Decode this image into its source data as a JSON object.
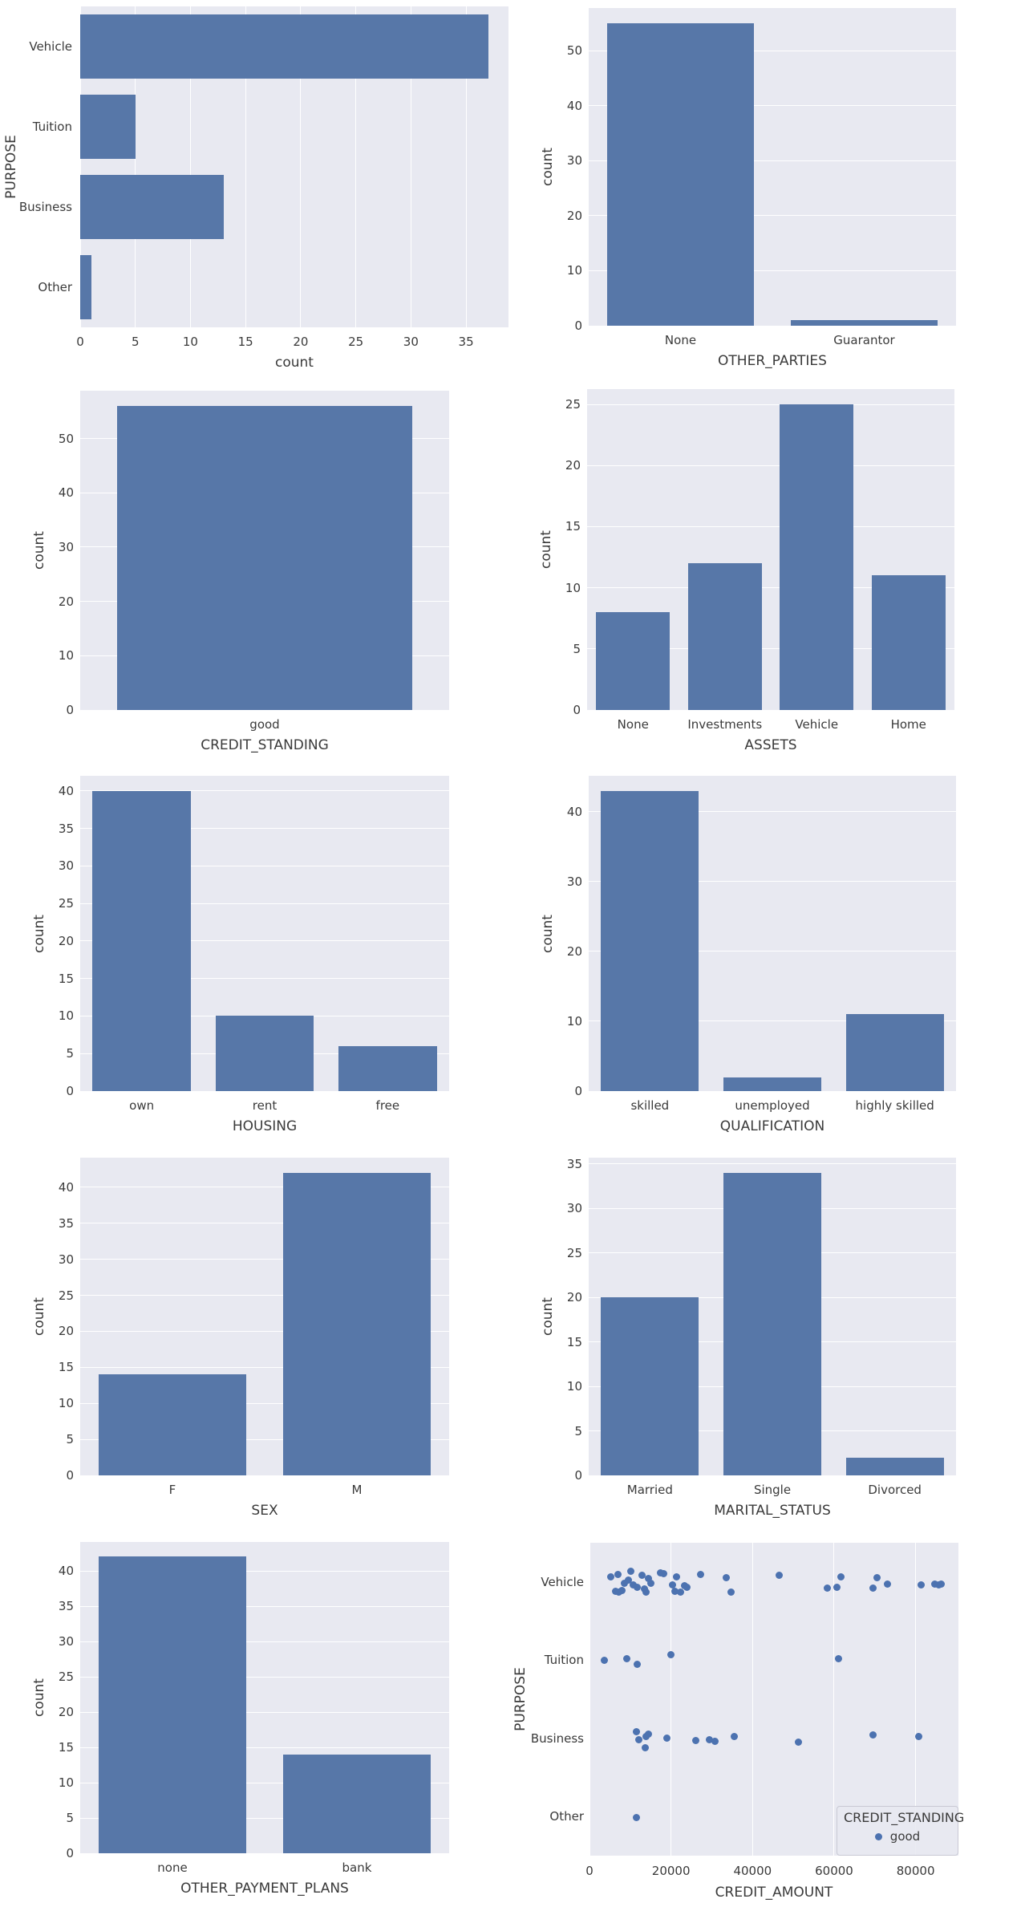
{
  "figure": {
    "background": "#ffffff",
    "plot_background": "#e8e9f1",
    "grid_color": "#ffffff",
    "bar_color": "#5777a8",
    "dot_color": "#4c72b0",
    "text_color": "#3a3a3a"
  },
  "chart_data": [
    {
      "type": "bar",
      "orientation": "horizontal",
      "title": "",
      "xlabel": "count",
      "ylabel": "PURPOSE",
      "categories": [
        "Vehicle",
        "Tuition",
        "Business",
        "Other"
      ],
      "values": [
        37,
        5,
        13,
        1
      ],
      "xticks": [
        0,
        5,
        10,
        15,
        20,
        25,
        30,
        35
      ],
      "xlim": [
        0,
        38.85
      ],
      "grid": true,
      "legend_position": "none"
    },
    {
      "type": "bar",
      "orientation": "vertical",
      "title": "",
      "xlabel": "OTHER_PARTIES",
      "ylabel": "count",
      "categories": [
        "None",
        "Guarantor"
      ],
      "values": [
        55,
        1
      ],
      "yticks": [
        0,
        10,
        20,
        30,
        40,
        50
      ],
      "ylim": [
        0,
        57.75
      ],
      "grid": true,
      "legend_position": "none"
    },
    {
      "type": "bar",
      "orientation": "vertical",
      "title": "",
      "xlabel": "CREDIT_STANDING",
      "ylabel": "count",
      "categories": [
        "good"
      ],
      "values": [
        56
      ],
      "yticks": [
        0,
        10,
        20,
        30,
        40,
        50
      ],
      "ylim": [
        0,
        58.8
      ],
      "grid": true,
      "legend_position": "none"
    },
    {
      "type": "bar",
      "orientation": "vertical",
      "title": "",
      "xlabel": "ASSETS",
      "ylabel": "count",
      "categories": [
        "None",
        "Investments",
        "Vehicle",
        "Home"
      ],
      "values": [
        8,
        12,
        25,
        11
      ],
      "yticks": [
        0,
        5,
        10,
        15,
        20,
        25
      ],
      "ylim": [
        0,
        26.25
      ],
      "grid": true,
      "legend_position": "none"
    },
    {
      "type": "bar",
      "orientation": "vertical",
      "title": "",
      "xlabel": "HOUSING",
      "ylabel": "count",
      "categories": [
        "own",
        "rent",
        "free"
      ],
      "values": [
        40,
        10,
        6
      ],
      "yticks": [
        0,
        5,
        10,
        15,
        20,
        25,
        30,
        35,
        40
      ],
      "ylim": [
        0,
        42
      ],
      "grid": true,
      "legend_position": "none"
    },
    {
      "type": "bar",
      "orientation": "vertical",
      "title": "",
      "xlabel": "QUALIFICATION",
      "ylabel": "count",
      "categories": [
        "skilled",
        "unemployed",
        "highly skilled"
      ],
      "values": [
        43,
        2,
        11
      ],
      "yticks": [
        0,
        10,
        20,
        30,
        40
      ],
      "ylim": [
        0,
        45.15
      ],
      "grid": true,
      "legend_position": "none"
    },
    {
      "type": "bar",
      "orientation": "vertical",
      "title": "",
      "xlabel": "SEX",
      "ylabel": "count",
      "categories": [
        "F",
        "M"
      ],
      "values": [
        14,
        42
      ],
      "yticks": [
        0,
        5,
        10,
        15,
        20,
        25,
        30,
        35,
        40
      ],
      "ylim": [
        0,
        44.1
      ],
      "grid": true,
      "legend_position": "none"
    },
    {
      "type": "bar",
      "orientation": "vertical",
      "title": "",
      "xlabel": "MARITAL_STATUS",
      "ylabel": "count",
      "categories": [
        "Married",
        "Single",
        "Divorced"
      ],
      "values": [
        20,
        34,
        2
      ],
      "yticks": [
        0,
        5,
        10,
        15,
        20,
        25,
        30,
        35
      ],
      "ylim": [
        0,
        35.7
      ],
      "grid": true,
      "legend_position": "none"
    },
    {
      "type": "bar",
      "orientation": "vertical",
      "title": "",
      "xlabel": "OTHER_PAYMENT_PLANS",
      "ylabel": "count",
      "categories": [
        "none",
        "bank"
      ],
      "values": [
        42,
        14
      ],
      "yticks": [
        0,
        5,
        10,
        15,
        20,
        25,
        30,
        35,
        40
      ],
      "ylim": [
        0,
        44.1
      ],
      "grid": true,
      "legend_position": "none"
    },
    {
      "type": "scatter",
      "title": "",
      "xlabel": "CREDIT_AMOUNT",
      "ylabel": "PURPOSE",
      "categories": [
        "Vehicle",
        "Tuition",
        "Business",
        "Other"
      ],
      "xticks": [
        0,
        20000,
        40000,
        60000,
        80000
      ],
      "xlim": [
        0,
        90500
      ],
      "grid": true,
      "legend_position": "lower right",
      "legend": {
        "title": "CREDIT_STANDING",
        "entries": [
          {
            "label": "good",
            "color": "#4c72b0"
          }
        ]
      },
      "series": [
        {
          "name": "good",
          "points": [
            {
              "category": "Vehicle",
              "values": [
                [
                  5300,
                  -0.5
                ],
                [
                  6400,
                  0.9
                ],
                [
                  7000,
                  -0.7
                ],
                [
                  7200,
                  1.0
                ],
                [
                  7900,
                  0.8
                ],
                [
                  8500,
                  0.1
                ],
                [
                  9500,
                  -0.2
                ],
                [
                  10200,
                  -1.0
                ],
                [
                  10800,
                  0.3
                ],
                [
                  11800,
                  0.5
                ],
                [
                  12800,
                  -0.6
                ],
                [
                  13400,
                  0.7
                ],
                [
                  13800,
                  1.0
                ],
                [
                  14400,
                  -0.3
                ],
                [
                  15100,
                  0.1
                ],
                [
                  17400,
                  -0.9
                ],
                [
                  18100,
                  -0.8
                ],
                [
                  20300,
                  0.3
                ],
                [
                  21000,
                  0.9
                ],
                [
                  21300,
                  -0.5
                ],
                [
                  22300,
                  1.0
                ],
                [
                  23300,
                  0.4
                ],
                [
                  23900,
                  0.5
                ],
                [
                  27200,
                  -0.7
                ],
                [
                  33500,
                  -0.4
                ],
                [
                  34800,
                  1.0
                ],
                [
                  46600,
                  -0.6
                ],
                [
                  58400,
                  0.6
                ],
                [
                  60700,
                  0.5
                ],
                [
                  61700,
                  -0.5
                ],
                [
                  69500,
                  0.6
                ],
                [
                  70500,
                  -0.4
                ],
                [
                  73100,
                  0.2
                ],
                [
                  81300,
                  0.3
                ],
                [
                  84600,
                  0.2
                ],
                [
                  85600,
                  0.3
                ],
                [
                  86300,
                  0.2
                ]
              ]
            },
            {
              "category": "Tuition",
              "values": [
                [
                  3600,
                  0.0
                ],
                [
                  9200,
                  -0.1
                ],
                [
                  11800,
                  0.4
                ],
                [
                  19900,
                  -0.5
                ],
                [
                  61000,
                  -0.1
                ]
              ]
            },
            {
              "category": "Business",
              "values": [
                [
                  11500,
                  -0.6
                ],
                [
                  12100,
                  0.1
                ],
                [
                  13600,
                  0.9
                ],
                [
                  13900,
                  -0.2
                ],
                [
                  14400,
                  -0.4
                ],
                [
                  19000,
                  0.0
                ],
                [
                  26000,
                  0.2
                ],
                [
                  29500,
                  0.1
                ],
                [
                  30800,
                  0.3
                ],
                [
                  35500,
                  -0.2
                ],
                [
                  51200,
                  0.4
                ],
                [
                  69500,
                  -0.3
                ],
                [
                  80700,
                  -0.2
                ]
              ]
            },
            {
              "category": "Other",
              "values": [
                [
                  11500,
                  0.1
                ]
              ]
            }
          ]
        }
      ]
    }
  ]
}
